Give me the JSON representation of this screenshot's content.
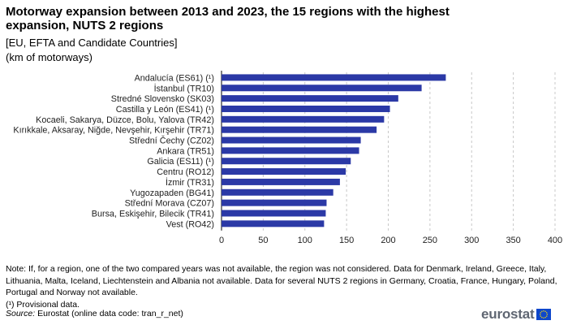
{
  "header": {
    "title": "Motorway expansion between 2013 and 2023, the 15 regions with the highest expansion, NUTS 2 regions",
    "subtitle": "[EU, EFTA and Candidate Countries]",
    "unit": "(km of motorways)"
  },
  "chart_data": {
    "type": "bar",
    "orientation": "horizontal",
    "categories": [
      "Andalucía (ES61) (¹)",
      "İstanbul (TR10)",
      "Stredné Slovensko (SK03)",
      "Castilla y León (ES41) (¹)",
      "Kocaeli, Sakarya, Düzce, Bolu, Yalova (TR42)",
      "Kırıkkale, Aksaray, Niğde, Nevşehir, Kırşehir (TR71)",
      "Střední Čechy (CZ02)",
      "Ankara (TR51)",
      "Galicia (ES11) (¹)",
      "Centru (RO12)",
      "İzmir (TR31)",
      "Yugozapaden (BG41)",
      "Střední Morava (CZ07)",
      "Bursa, Eskişehir, Bilecik (TR41)",
      "Vest (RO42)"
    ],
    "values": [
      269,
      240,
      212,
      202,
      195,
      186,
      167,
      165,
      155,
      149,
      142,
      134,
      126,
      125,
      123
    ],
    "xlim": [
      0,
      400
    ],
    "xticks": [
      0,
      50,
      100,
      150,
      200,
      250,
      300,
      350,
      400
    ],
    "grid": "vertical dashed",
    "bar_color": "#2b39a6"
  },
  "notes": {
    "note": "Note: If, for a region, one of the two compared years was not available, the region was not considered. Data for Denmark, Ireland, Greece, Italy, Lithuania, Malta, Iceland, Liechtenstein and Albania not available. Data for several NUTS 2 regions in Germany, Croatia, France, Hungary, Poland, Portugal and Norway not available.",
    "footnote": "(¹) Provisional data.",
    "source_label": "Source:",
    "source_text": " Eurostat (online data code: tran_r_net)"
  },
  "logo": {
    "text": "eurostat",
    "flag_color": "#0e47cb",
    "star_color": "#ffdd00"
  }
}
